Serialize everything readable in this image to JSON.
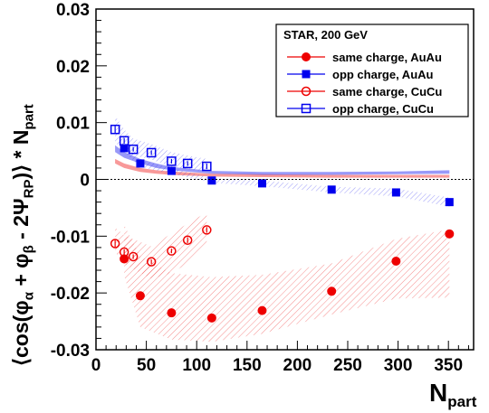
{
  "chart_data": {
    "type": "scatter",
    "xlabel": "N",
    "xlabel_sub": "part",
    "ylabel_text": "⟨cos(φ<sub>α</sub> + φ<sub>β</sub> - 2Ψ<sub>RP</sub>)⟩ * N<sub>part</sub>",
    "xlim": [
      0,
      375
    ],
    "ylim": [
      -0.03,
      0.03
    ],
    "x_ticks": [
      0,
      50,
      100,
      150,
      200,
      250,
      300,
      350
    ],
    "x_tick_labels": [
      "0",
      "50",
      "100",
      "150",
      "200",
      "250",
      "300",
      "350"
    ],
    "y_ticks": [
      -0.03,
      -0.02,
      -0.01,
      0,
      0.01,
      0.02,
      0.03
    ],
    "y_tick_labels": [
      "-0.03",
      "-0.02",
      "-0.01",
      "0",
      "0.01",
      "0.02",
      "0.03"
    ],
    "zero_line": true,
    "legend": {
      "placement": "top-right",
      "title": "STAR, 200 GeV",
      "entries": [
        "same charge, AuAu",
        "opp charge, AuAu",
        "same charge, CuCu",
        "opp charge, CuCu"
      ]
    },
    "series": [
      {
        "name": "same charge, AuAu",
        "color": "#ee0000",
        "marker": "filled-circle",
        "x": [
          28,
          44,
          75,
          115,
          165,
          234,
          298,
          351
        ],
        "y": [
          -0.014,
          -0.0205,
          -0.0235,
          -0.0244,
          -0.0231,
          -0.0197,
          -0.0144,
          -0.0096
        ],
        "err": [
          0.0007,
          0.0005,
          0.0004,
          0.0004,
          0.0004,
          0.0004,
          0.0006,
          0.0007
        ],
        "band_x": [
          28,
          44,
          75,
          115,
          165,
          234,
          298,
          351
        ],
        "band_lo": [
          -0.017,
          -0.026,
          -0.0282,
          -0.0286,
          -0.0272,
          -0.0238,
          -0.021,
          -0.0208
        ],
        "band_hi": [
          -0.008,
          -0.0135,
          -0.0165,
          -0.0172,
          -0.0168,
          -0.0148,
          -0.0105,
          -0.0088
        ]
      },
      {
        "name": "opp charge, AuAu",
        "color": "#0000ee",
        "marker": "filled-square",
        "x": [
          28,
          44,
          75,
          115,
          165,
          234,
          298,
          351
        ],
        "y": [
          0.0055,
          0.0028,
          0.0015,
          -0.0002,
          -0.0007,
          -0.0018,
          -0.0023,
          -0.004
        ],
        "err": [
          0.0005,
          0.0004,
          0.0003,
          0.0003,
          0.0003,
          0.0004,
          0.0005,
          0.0006
        ],
        "band_x": [
          28,
          44,
          75,
          115,
          165,
          234,
          298,
          351
        ],
        "band_lo": [
          0.0048,
          0.0022,
          0.001,
          -0.0006,
          -0.0012,
          -0.0023,
          -0.003,
          -0.0048
        ],
        "band_hi": [
          0.0062,
          0.0034,
          0.002,
          0.0002,
          -0.0002,
          -0.0013,
          -0.0016,
          -0.0032
        ]
      },
      {
        "name": "same charge, CuCu",
        "color": "#ee0000",
        "marker": "open-circle",
        "x": [
          19,
          28,
          37,
          55,
          75,
          91,
          110
        ],
        "y": [
          -0.0113,
          -0.0128,
          -0.0136,
          -0.0145,
          -0.0126,
          -0.0107,
          -0.0089
        ],
        "err": [
          0.0006,
          0.0005,
          0.0004,
          0.0004,
          0.0004,
          0.0005,
          0.0005
        ],
        "band_x": [
          19,
          28,
          37,
          55,
          75,
          91,
          110
        ],
        "band_lo": [
          -0.0128,
          -0.0148,
          -0.0158,
          -0.0175,
          -0.0165,
          -0.0148,
          -0.0118
        ],
        "band_hi": [
          -0.0085,
          -0.0098,
          -0.0105,
          -0.0118,
          -0.0095,
          -0.0078,
          -0.0058
        ]
      },
      {
        "name": "opp charge, CuCu",
        "color": "#0000ee",
        "marker": "open-square",
        "x": [
          19,
          28,
          37,
          55,
          75,
          91,
          110
        ],
        "y": [
          0.0088,
          0.0068,
          0.0053,
          0.0047,
          0.0032,
          0.0028,
          0.0023
        ],
        "err": [
          0.0006,
          0.0005,
          0.0004,
          0.0004,
          0.0004,
          0.0004,
          0.0005
        ],
        "band_x": [
          19,
          28,
          37,
          55,
          75,
          91,
          110
        ],
        "band_lo": [
          0.0065,
          0.0052,
          0.0042,
          0.0035,
          0.0022,
          0.0018,
          0.0013
        ],
        "band_hi": [
          0.0112,
          0.0088,
          0.0072,
          0.0062,
          0.0048,
          0.0042,
          0.0036
        ]
      }
    ],
    "extra_bands": [
      {
        "color": "#ee0000",
        "x": [
          19,
          28,
          44,
          60,
          75,
          115,
          165,
          234,
          298,
          351
        ],
        "lo": [
          0.0028,
          0.002,
          0.0013,
          0.001,
          0.0008,
          0.0005,
          0.0004,
          0.0003,
          0.0003,
          0.0003
        ],
        "hi": [
          0.0036,
          0.0028,
          0.002,
          0.0016,
          0.0014,
          0.001,
          0.0009,
          0.0008,
          0.0008,
          0.0008
        ]
      },
      {
        "color": "#0000ee",
        "x": [
          19,
          28,
          44,
          60,
          75,
          115,
          165,
          234,
          298,
          351
        ],
        "lo": [
          0.0048,
          0.0038,
          0.0028,
          0.002,
          0.0016,
          0.001,
          0.0008,
          0.0008,
          0.0009,
          0.001
        ],
        "hi": [
          0.006,
          0.0048,
          0.0036,
          0.0028,
          0.0022,
          0.0015,
          0.0013,
          0.0013,
          0.0014,
          0.0016
        ]
      }
    ]
  }
}
